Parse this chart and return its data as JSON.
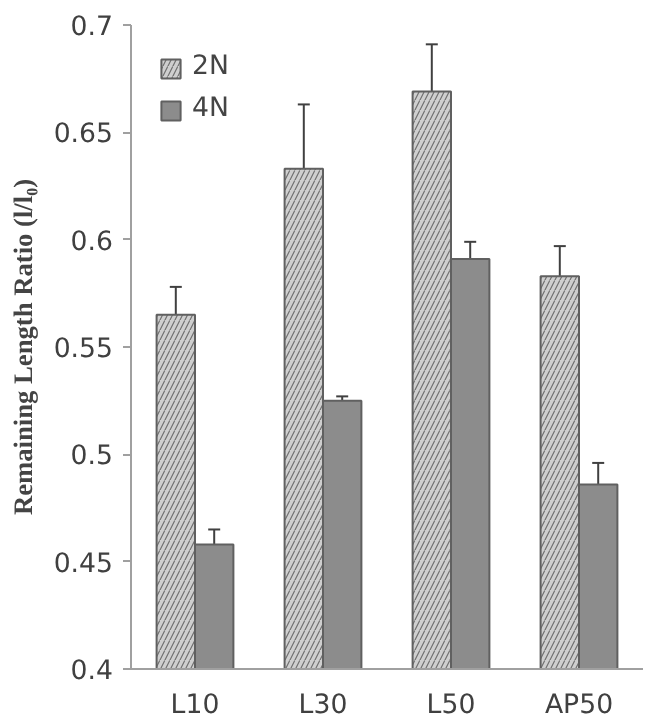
{
  "chart_data": {
    "type": "bar",
    "ylabel": "Remaining Length Ratio (l/l₀)",
    "categories": [
      "L10",
      "L30",
      "L50",
      "AP50"
    ],
    "series": [
      {
        "name": "2N",
        "color": "#cfcfcf",
        "values": [
          0.565,
          0.633,
          0.669,
          0.583
        ],
        "errors": [
          0.013,
          0.03,
          0.022,
          0.014
        ]
      },
      {
        "name": "4N",
        "color": "#8c8c8c",
        "values": [
          0.458,
          0.525,
          0.591,
          0.486
        ],
        "errors": [
          0.007,
          0.002,
          0.008,
          0.01
        ]
      }
    ],
    "ylim": [
      0.4,
      0.7
    ],
    "yticks": [
      0.4,
      0.45,
      0.5,
      0.55,
      0.6,
      0.65,
      0.7
    ],
    "grid": false,
    "legend": "top left"
  }
}
